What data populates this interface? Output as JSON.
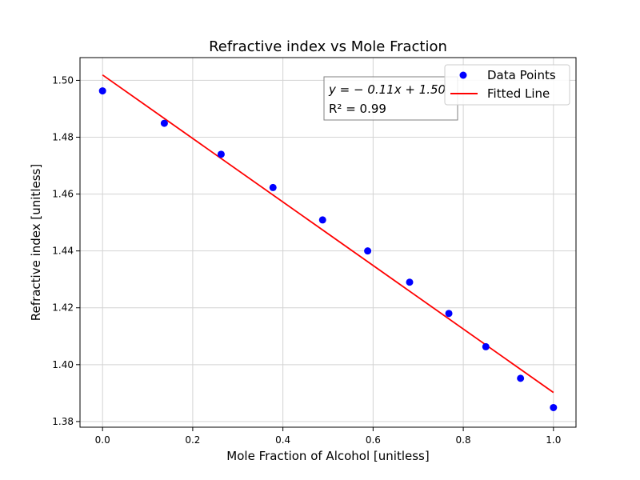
{
  "chart_data": {
    "type": "scatter",
    "title": "Refractive index vs Mole Fraction",
    "xlabel": "Mole Fraction of Alcohol [unitless]",
    "ylabel": "Refractive index [unitless]",
    "xlim": [
      -0.05,
      1.05
    ],
    "ylim": [
      1.378,
      1.508
    ],
    "xticks": [
      0.0,
      0.2,
      0.4,
      0.6,
      0.8,
      1.0
    ],
    "xtick_labels": [
      "0.0",
      "0.2",
      "0.4",
      "0.6",
      "0.8",
      "1.0"
    ],
    "yticks": [
      1.38,
      1.4,
      1.42,
      1.44,
      1.46,
      1.48,
      1.5
    ],
    "ytick_labels": [
      "1.38",
      "1.40",
      "1.42",
      "1.44",
      "1.46",
      "1.48",
      "1.50"
    ],
    "grid": true,
    "legend_position": "top-right",
    "series": [
      {
        "name": "Data Points",
        "kind": "scatter",
        "color": "#0000ff",
        "x": [
          0.0,
          0.137,
          0.263,
          0.378,
          0.488,
          0.588,
          0.681,
          0.768,
          0.85,
          0.927,
          1.0
        ],
        "y": [
          1.4963,
          1.4849,
          1.474,
          1.4623,
          1.4509,
          1.44,
          1.429,
          1.418,
          1.4063,
          1.3952,
          1.3849
        ]
      },
      {
        "name": "Fitted Line",
        "kind": "line",
        "color": "#ff0000",
        "x": [
          0.0,
          1.0
        ],
        "y": [
          1.5019,
          1.3902
        ]
      }
    ],
    "annotation": {
      "equation": "y = − 0.11x + 1.50",
      "r_squared": "R² = 0.99"
    }
  }
}
